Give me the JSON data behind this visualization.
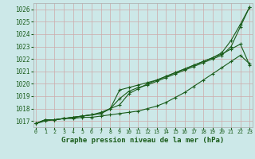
{
  "title": "Graphe pression niveau de la mer (hPa)",
  "bg_color": "#cce8e8",
  "grid_color": "#aacccc",
  "line_color": "#1a5c1a",
  "x_values": [
    0,
    1,
    2,
    3,
    4,
    5,
    6,
    7,
    8,
    9,
    10,
    11,
    12,
    13,
    14,
    15,
    16,
    17,
    18,
    19,
    20,
    21,
    22,
    23
  ],
  "ylim": [
    1016.5,
    1026.5
  ],
  "yticks": [
    1017,
    1018,
    1019,
    1020,
    1021,
    1022,
    1023,
    1024,
    1025,
    1026
  ],
  "series": [
    [
      1016.8,
      1017.1,
      1017.1,
      1017.2,
      1017.2,
      1017.3,
      1017.3,
      1017.4,
      1017.5,
      1017.6,
      1017.7,
      1017.8,
      1018.0,
      1018.2,
      1018.5,
      1018.9,
      1019.3,
      1019.8,
      1020.3,
      1020.8,
      1021.3,
      1021.8,
      1022.3,
      1021.6
    ],
    [
      1016.8,
      1017.1,
      1017.1,
      1017.2,
      1017.3,
      1017.4,
      1017.5,
      1017.6,
      1018.0,
      1018.8,
      1019.4,
      1019.7,
      1019.9,
      1020.2,
      1020.5,
      1020.8,
      1021.1,
      1021.4,
      1021.7,
      1022.0,
      1022.3,
      1023.0,
      1024.6,
      1026.2
    ],
    [
      1016.8,
      1017.1,
      1017.1,
      1017.2,
      1017.3,
      1017.4,
      1017.5,
      1017.6,
      1018.0,
      1019.5,
      1019.7,
      1019.9,
      1020.1,
      1020.3,
      1020.6,
      1020.9,
      1021.2,
      1021.5,
      1021.8,
      1022.1,
      1022.5,
      1023.5,
      1024.8,
      1026.2
    ],
    [
      1016.8,
      1017.0,
      1017.1,
      1017.2,
      1017.3,
      1017.4,
      1017.5,
      1017.7,
      1018.0,
      1018.3,
      1019.2,
      1019.6,
      1020.0,
      1020.3,
      1020.6,
      1020.9,
      1021.2,
      1021.5,
      1021.8,
      1022.1,
      1022.4,
      1022.8,
      1023.2,
      1021.5
    ]
  ]
}
